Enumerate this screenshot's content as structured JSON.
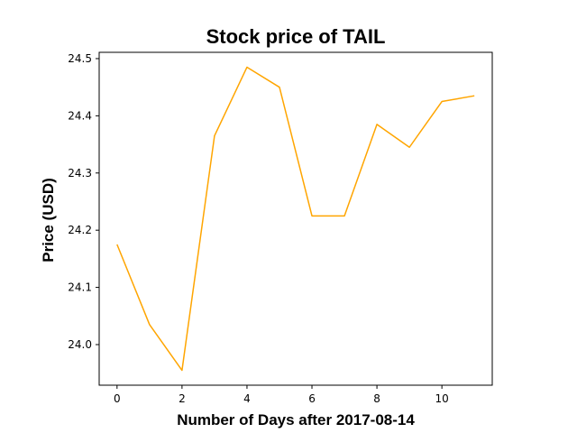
{
  "chart_data": {
    "type": "line",
    "title": "Stock price of TAIL",
    "xlabel": "Number of Days after 2017-08-14",
    "ylabel": "Price (USD)",
    "x": [
      0,
      1,
      2,
      3,
      4,
      5,
      6,
      7,
      8,
      9,
      10,
      11
    ],
    "series": [
      {
        "name": "",
        "values": [
          24.175,
          24.035,
          23.955,
          24.365,
          24.485,
          24.45,
          24.225,
          24.225,
          24.385,
          24.345,
          24.425,
          24.435
        ],
        "color": "#ffa500"
      }
    ],
    "xlim": [
      -0.55,
      11.55
    ],
    "ylim": [
      23.929,
      24.511
    ],
    "xticks": [
      0,
      2,
      4,
      6,
      8,
      10
    ],
    "yticks": [
      24.0,
      24.1,
      24.2,
      24.3,
      24.4,
      24.5
    ],
    "xtick_labels": [
      "0",
      "2",
      "4",
      "6",
      "8",
      "10"
    ],
    "ytick_labels": [
      "24.0",
      "24.1",
      "24.2",
      "24.3",
      "24.4",
      "24.5"
    ],
    "grid": false,
    "legend": "none"
  }
}
